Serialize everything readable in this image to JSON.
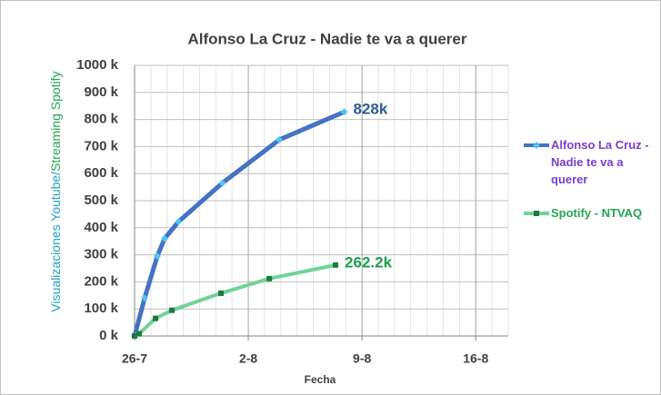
{
  "chart_data": {
    "type": "line",
    "title": "Alfonso La Cruz - Nadie te va a querer",
    "x_label": "Fecha",
    "y_label": [
      "Visualizaciones Youtube/",
      "Streaming Spotify"
    ],
    "xlim": [
      0,
      23
    ],
    "xticks": [
      {
        "value": 0,
        "label": "26-7"
      },
      {
        "value": 7,
        "label": "2-8"
      },
      {
        "value": 14,
        "label": "9-8"
      },
      {
        "value": 21,
        "label": "16-8"
      }
    ],
    "ylim": [
      0,
      1000000
    ],
    "yticks": [
      {
        "value": 0,
        "label": "0 k"
      },
      {
        "value": 100000,
        "label": "100 k"
      },
      {
        "value": 200000,
        "label": "200 k"
      },
      {
        "value": 300000,
        "label": "300 k"
      },
      {
        "value": 400000,
        "label": "400 k"
      },
      {
        "value": 500000,
        "label": "500 k"
      },
      {
        "value": 600000,
        "label": "600 k"
      },
      {
        "value": 700000,
        "label": "700 k"
      },
      {
        "value": 800000,
        "label": "800 k"
      },
      {
        "value": 900000,
        "label": "900 k"
      },
      {
        "value": 1000000,
        "label": "1000 k"
      }
    ],
    "grid": true,
    "legend": "right",
    "series": [
      {
        "name": "Alfonso La Cruz - Nadie te va a querer",
        "color": "#4472c4",
        "marker_color": "#4fc3f7",
        "marker": "diamond",
        "label_color": "#7a3fd0",
        "value_label_color": "#2e5d8e",
        "x": [
          0,
          0.62,
          1.4,
          1.85,
          2.7,
          5.4,
          8.9,
          12.9
        ],
        "values": [
          0,
          140000,
          295000,
          360000,
          422000,
          565000,
          725000,
          828000
        ],
        "value_labels": [
          null,
          null,
          null,
          null,
          null,
          null,
          null,
          "828k"
        ]
      },
      {
        "name": "Spotify - NTVAQ",
        "color": "#6fd39a",
        "marker_color": "#1f7a3a",
        "marker": "square",
        "label_color": "#22a650",
        "value_label_color": "#1e9e50",
        "x": [
          0,
          0.28,
          1.29,
          2.3,
          5.32,
          8.29,
          12.37
        ],
        "values": [
          0,
          8000,
          65000,
          95000,
          158000,
          212000,
          262200
        ],
        "value_labels": [
          null,
          null,
          null,
          null,
          null,
          null,
          "262.2k"
        ]
      }
    ]
  }
}
